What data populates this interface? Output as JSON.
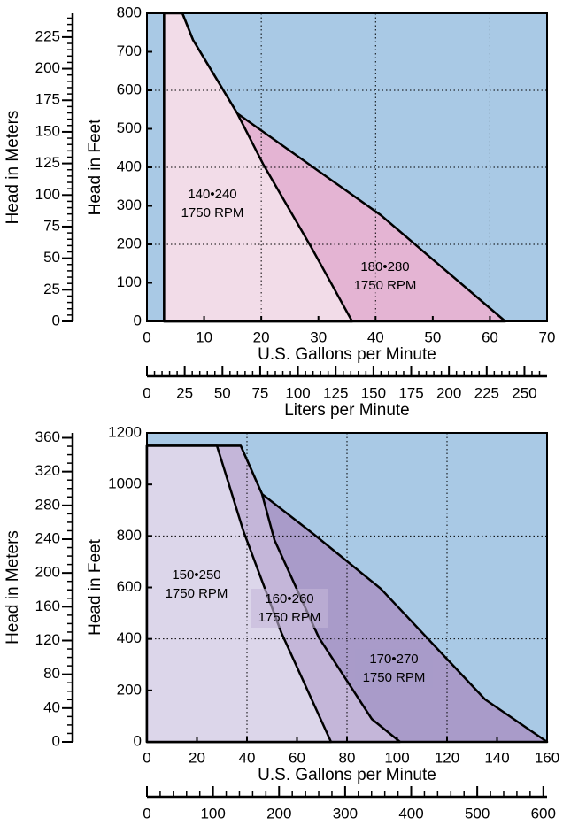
{
  "chart_data": [
    {
      "type": "area",
      "xlabel": "U.S. Gallons per Minute",
      "ylabel": "Head in Feet",
      "y2label": "Head in Meters",
      "x2label": "Liters per Minute",
      "xlim": [
        0,
        70
      ],
      "xticks": [
        0,
        10,
        20,
        30,
        40,
        50,
        60,
        70
      ],
      "ylim": [
        0,
        800
      ],
      "yticks": [
        0,
        100,
        200,
        300,
        400,
        500,
        600,
        700,
        800
      ],
      "y2lim": [
        0,
        243.84
      ],
      "y2ticks": [
        0,
        25,
        50,
        75,
        100,
        125,
        150,
        175,
        200,
        225
      ],
      "y2minor": 5,
      "x2lim": [
        0,
        264.98
      ],
      "x2ticks": [
        0,
        25,
        50,
        75,
        100,
        125,
        150,
        175,
        200,
        225,
        250
      ],
      "x2minor": 5,
      "xgrid": [
        20,
        40,
        60
      ],
      "ygrid": [
        200,
        400,
        600
      ],
      "background": "#a9c9e5",
      "series": [
        {
          "name": "180•280",
          "speed": "1750 RPM",
          "color": "#e4b4d3",
          "x": [
            3,
            3,
            6.2,
            8.05,
            15.8,
            40.9,
            62.7
          ],
          "values": [
            0,
            800,
            800,
            731,
            540,
            276,
            0
          ]
        },
        {
          "name": "140•240",
          "speed": "1750 RPM",
          "color": "#f2dce8",
          "x": [
            3,
            3,
            6.2,
            8.05,
            15.8,
            20.3,
            28.8,
            35.9
          ],
          "values": [
            0,
            800,
            800,
            731,
            540,
            409,
            191,
            0
          ]
        }
      ]
    },
    {
      "type": "area",
      "xlabel": "U.S. Gallons per Minute",
      "ylabel": "Head in Feet",
      "y2label": "Head in Meters",
      "xlim": [
        0,
        160
      ],
      "xticks": [
        0,
        20,
        40,
        60,
        80,
        100,
        120,
        140,
        160
      ],
      "ylim": [
        0,
        1200
      ],
      "yticks": [
        0,
        200,
        400,
        600,
        800,
        1000,
        1200
      ],
      "y2lim": [
        0,
        365.76
      ],
      "y2ticks": [
        0,
        40,
        80,
        120,
        160,
        200,
        240,
        280,
        320,
        360
      ],
      "y2minor": 10,
      "x2lim": [
        0,
        605.67
      ],
      "x2ticks": [
        0,
        100,
        200,
        300,
        400,
        500,
        600
      ],
      "x2minor": 20,
      "xgrid": [
        40,
        80,
        120
      ],
      "ygrid": [
        400,
        800
      ],
      "background": "#a9c9e5",
      "series": [
        {
          "name": "170•270",
          "speed": "1750 RPM",
          "color": "#a99bc9",
          "x": [
            0,
            0,
            37.5,
            46,
            66.9,
            93.5,
            135.2,
            160
          ],
          "values": [
            0,
            1150,
            1150,
            963,
            805,
            595,
            165,
            0
          ]
        },
        {
          "name": "160•260",
          "speed": "1750 RPM",
          "color": "#c4b6d9",
          "x": [
            0,
            0,
            37.5,
            46,
            51,
            68.7,
            89.9,
            101.2
          ],
          "values": [
            0,
            1150,
            1150,
            963,
            784,
            406,
            89,
            0
          ]
        },
        {
          "name": "150•250",
          "speed": "1750 RPM",
          "color": "#dcd6ea",
          "x": [
            0,
            0,
            28,
            38.6,
            53.8,
            73.6
          ],
          "values": [
            0,
            1150,
            1150,
            818,
            423,
            0
          ]
        }
      ]
    }
  ]
}
